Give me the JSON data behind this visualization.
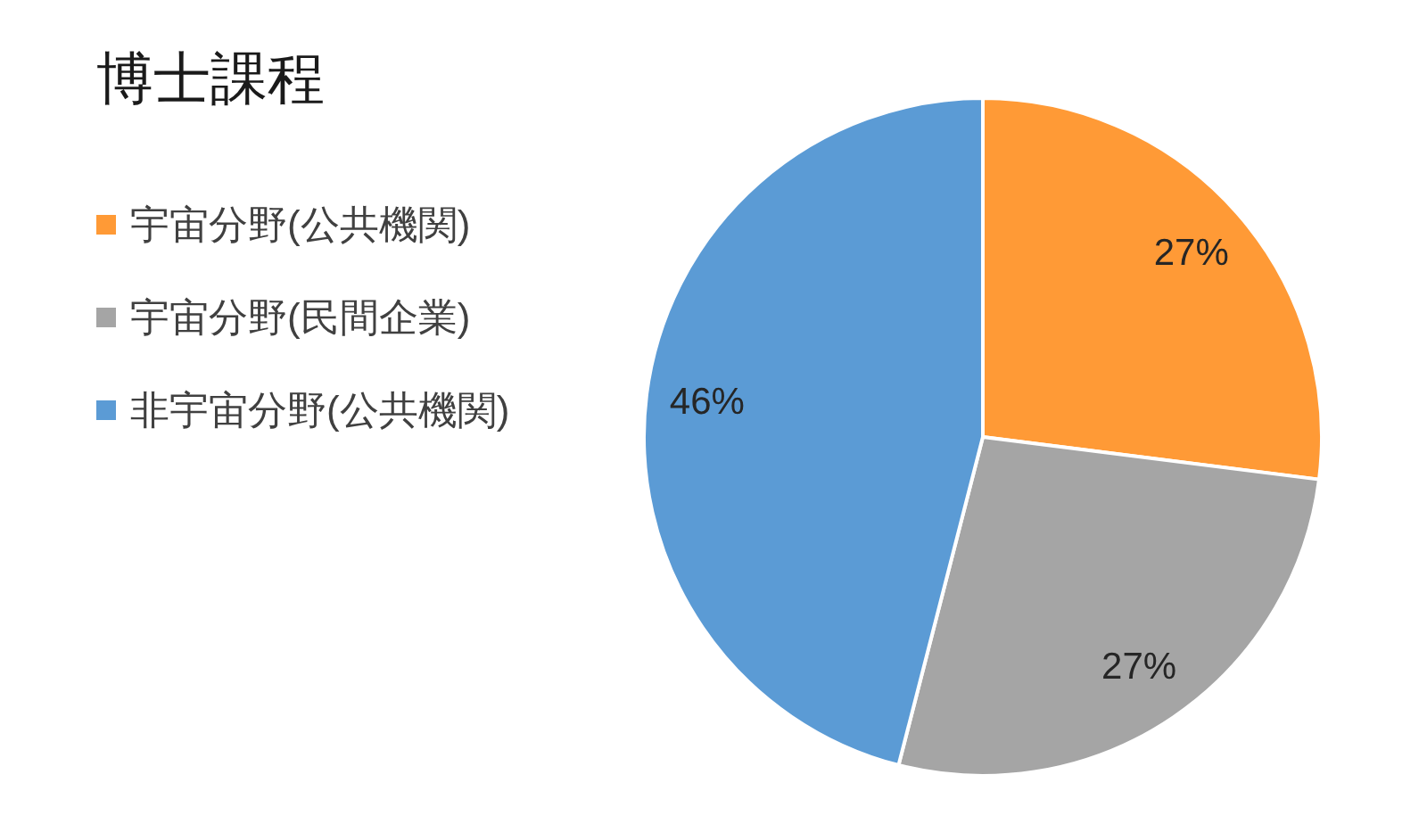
{
  "chart_data": {
    "type": "pie",
    "title": "博士課程",
    "categories": [
      "宇宙分野(公共機関)",
      "宇宙分野(民間企業)",
      "非宇宙分野(公共機関)"
    ],
    "values": [
      27,
      27,
      46
    ],
    "colors": [
      "#ff9a36",
      "#a5a5a5",
      "#5b9bd5"
    ],
    "value_labels": [
      "27%",
      "27%",
      "46%"
    ],
    "legend": "left"
  }
}
